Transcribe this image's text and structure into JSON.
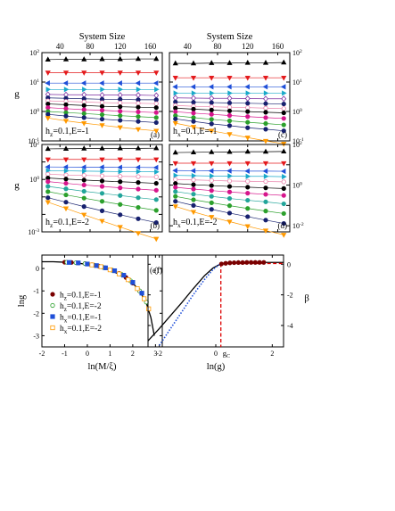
{
  "colors": {
    "black": "#000000",
    "red": "#e41a1c",
    "orange": "#ff9900",
    "blue": "#1f4fd8",
    "cyan": "#19a9c9",
    "magenta": "#d6168c",
    "green": "#2ca02c",
    "navy": "#16206e",
    "purple": "#7b2c9f",
    "pink": "#e87ea8",
    "teal": "#22a59a",
    "darkred": "#7a0000"
  },
  "chart_data": [
    {
      "id": "a",
      "type": "line",
      "panel_label": "(a)",
      "annotation": "h_z=0.1,E=-1",
      "xlabel": "System Size",
      "ylabel": "g",
      "log_y": true,
      "ylim": [
        0.1,
        100
      ],
      "x_ticks": [
        "40",
        "80",
        "120",
        "160"
      ],
      "y_ticks": [
        "10^{-1}",
        "10^{0}",
        "10^{1}",
        "10^{2}"
      ],
      "x": [
        24,
        48,
        72,
        96,
        120,
        144,
        168
      ],
      "series": [
        {
          "marker": "triangle-up",
          "color": "black",
          "values": [
            58,
            59,
            59,
            60,
            60,
            61,
            61
          ]
        },
        {
          "marker": "triangle-down",
          "color": "red",
          "values": [
            21,
            21,
            21,
            21,
            21,
            21,
            21
          ]
        },
        {
          "marker": "triangle-left",
          "color": "blue",
          "values": [
            9.2,
            9.2,
            9.2,
            9.2,
            9.2,
            9.2,
            9.2
          ]
        },
        {
          "marker": "triangle-right",
          "color": "cyan",
          "values": [
            5.6,
            5.6,
            5.6,
            5.6,
            5.6,
            5.6,
            5.6
          ]
        },
        {
          "marker": "diamond-open",
          "color": "purple",
          "values": [
            3.8,
            3.7,
            3.7,
            3.6,
            3.6,
            3.6,
            3.5
          ]
        },
        {
          "marker": "circle",
          "color": "navy",
          "values": [
            2.9,
            2.8,
            2.7,
            2.6,
            2.6,
            2.5,
            2.5
          ]
        },
        {
          "marker": "circle-open",
          "color": "pink",
          "values": [
            2.3,
            2.2,
            2.1,
            2.0,
            1.95,
            1.9,
            1.85
          ]
        },
        {
          "marker": "circle",
          "color": "black",
          "values": [
            1.8,
            1.7,
            1.6,
            1.5,
            1.45,
            1.4,
            1.35
          ]
        },
        {
          "marker": "circle",
          "color": "magenta",
          "values": [
            1.35,
            1.25,
            1.15,
            1.1,
            1.02,
            0.97,
            0.92
          ]
        },
        {
          "marker": "circle",
          "color": "green",
          "values": [
            1.0,
            0.92,
            0.85,
            0.78,
            0.72,
            0.67,
            0.62
          ]
        },
        {
          "marker": "circle",
          "color": "navy",
          "values": [
            0.8,
            0.7,
            0.62,
            0.55,
            0.5,
            0.46,
            0.42
          ]
        },
        {
          "marker": "triangle-down",
          "color": "orange",
          "values": [
            0.6,
            0.48,
            0.4,
            0.34,
            0.29,
            0.25,
            0.22
          ]
        }
      ]
    },
    {
      "id": "b",
      "type": "line",
      "panel_label": "(b)",
      "annotation": "h_z=0.1,E=-2",
      "ylabel": "g",
      "log_y": true,
      "ylim": [
        0.001,
        100
      ],
      "y_ticks": [
        "10^{-3}",
        "10^{0}",
        "10^{2}"
      ],
      "x": [
        24,
        48,
        72,
        96,
        120,
        144,
        168
      ],
      "series": [
        {
          "marker": "triangle-up",
          "color": "black",
          "values": [
            56,
            57,
            58,
            59,
            60,
            60,
            61
          ]
        },
        {
          "marker": "triangle-down",
          "color": "red",
          "values": [
            14,
            14,
            14,
            14,
            14,
            14,
            14
          ]
        },
        {
          "marker": "triangle-left",
          "color": "blue",
          "values": [
            5.2,
            5.1,
            5.0,
            5.0,
            4.9,
            4.9,
            4.8
          ]
        },
        {
          "marker": "triangle-right",
          "color": "cyan",
          "values": [
            3.2,
            3.1,
            3.0,
            2.9,
            2.8,
            2.8,
            2.7
          ]
        },
        {
          "marker": "circle-open",
          "color": "pink",
          "values": [
            2.0,
            1.8,
            1.7,
            1.6,
            1.5,
            1.45,
            1.4
          ]
        },
        {
          "marker": "circle",
          "color": "black",
          "values": [
            1.2,
            1.05,
            0.92,
            0.82,
            0.74,
            0.67,
            0.6
          ]
        },
        {
          "marker": "circle",
          "color": "magenta",
          "values": [
            0.75,
            0.6,
            0.48,
            0.4,
            0.33,
            0.28,
            0.24
          ]
        },
        {
          "marker": "circle",
          "color": "teal",
          "values": [
            0.4,
            0.29,
            0.21,
            0.16,
            0.12,
            0.09,
            0.07
          ]
        },
        {
          "marker": "circle",
          "color": "green",
          "values": [
            0.2,
            0.13,
            0.085,
            0.056,
            0.037,
            0.025,
            0.017
          ]
        },
        {
          "marker": "circle",
          "color": "navy",
          "values": [
            0.09,
            0.05,
            0.028,
            0.016,
            0.0095,
            0.0056,
            0.0034
          ]
        },
        {
          "marker": "triangle-down",
          "color": "orange",
          "values": [
            0.05,
            0.022,
            0.0095,
            0.0042,
            0.0019,
            0.00085,
            0.0004
          ]
        }
      ]
    },
    {
      "id": "c",
      "type": "line",
      "panel_label": "(c)",
      "annotation": "h_x=0.1,E=-1",
      "xlabel": "System Size",
      "log_y": true,
      "ylim": [
        0.1,
        100
      ],
      "x_ticks": [
        "40",
        "80",
        "120",
        "160"
      ],
      "y_ticks": [
        "10^{-1}",
        "10^{0}",
        "10^{1}",
        "10^{2}"
      ],
      "x": [
        24,
        48,
        72,
        96,
        120,
        144,
        168
      ],
      "series": [
        {
          "marker": "triangle-up",
          "color": "black",
          "values": [
            43,
            43,
            44,
            44,
            45,
            45,
            46
          ]
        },
        {
          "marker": "triangle-down",
          "color": "red",
          "values": [
            14,
            14,
            14,
            14,
            14,
            14,
            14
          ]
        },
        {
          "marker": "triangle-left",
          "color": "blue",
          "values": [
            6.9,
            6.9,
            6.9,
            6.9,
            6.9,
            6.9,
            6.9
          ]
        },
        {
          "marker": "triangle-right",
          "color": "cyan",
          "values": [
            4.2,
            4.2,
            4.2,
            4.2,
            4.2,
            4.2,
            4.2
          ]
        },
        {
          "marker": "diamond-open",
          "color": "purple",
          "values": [
            2.9,
            2.85,
            2.8,
            2.8,
            2.75,
            2.7,
            2.7
          ]
        },
        {
          "marker": "circle",
          "color": "navy",
          "values": [
            2.1,
            2.05,
            2.0,
            1.95,
            1.9,
            1.85,
            1.8
          ]
        },
        {
          "marker": "circle-open",
          "color": "pink",
          "values": [
            1.6,
            1.5,
            1.45,
            1.4,
            1.35,
            1.3,
            1.25
          ]
        },
        {
          "marker": "circle",
          "color": "black",
          "values": [
            1.3,
            1.2,
            1.12,
            1.05,
            0.99,
            0.94,
            0.9
          ]
        },
        {
          "marker": "circle",
          "color": "magenta",
          "values": [
            0.98,
            0.88,
            0.8,
            0.73,
            0.67,
            0.62,
            0.58
          ]
        },
        {
          "marker": "circle",
          "color": "green",
          "values": [
            0.72,
            0.62,
            0.54,
            0.48,
            0.43,
            0.39,
            0.35
          ]
        },
        {
          "marker": "circle",
          "color": "navy",
          "values": [
            0.56,
            0.46,
            0.38,
            0.33,
            0.28,
            0.25,
            0.22
          ]
        },
        {
          "marker": "triangle-down",
          "color": "orange",
          "values": [
            0.4,
            0.3,
            0.22,
            0.17,
            0.13,
            0.1,
            0.08
          ]
        }
      ]
    },
    {
      "id": "d",
      "type": "line",
      "panel_label": "(d)",
      "annotation": "h_x=0.1,E=-2",
      "log_y": true,
      "ylim": [
        0.005,
        100
      ],
      "y_ticks": [
        "10^{-2}",
        "10^{0}",
        "10^{2}"
      ],
      "x": [
        24,
        48,
        72,
        96,
        120,
        144,
        168
      ],
      "series": [
        {
          "marker": "triangle-up",
          "color": "black",
          "values": [
            40,
            41,
            42,
            43,
            44,
            44,
            45
          ]
        },
        {
          "marker": "triangle-down",
          "color": "red",
          "values": [
            12,
            12,
            12,
            12,
            12,
            12,
            12
          ]
        },
        {
          "marker": "triangle-left",
          "color": "blue",
          "values": [
            5.2,
            5.1,
            5.0,
            5.0,
            4.9,
            4.9,
            4.8
          ]
        },
        {
          "marker": "triangle-right",
          "color": "cyan",
          "values": [
            3.0,
            2.9,
            2.8,
            2.8,
            2.7,
            2.7,
            2.6
          ]
        },
        {
          "marker": "circle-open",
          "color": "pink",
          "values": [
            1.9,
            1.8,
            1.7,
            1.6,
            1.55,
            1.5,
            1.45
          ]
        },
        {
          "marker": "circle",
          "color": "black",
          "values": [
            1.2,
            1.05,
            0.95,
            0.86,
            0.79,
            0.73,
            0.68
          ]
        },
        {
          "marker": "circle",
          "color": "magenta",
          "values": [
            0.78,
            0.64,
            0.54,
            0.46,
            0.4,
            0.35,
            0.31
          ]
        },
        {
          "marker": "circle",
          "color": "teal",
          "values": [
            0.48,
            0.36,
            0.28,
            0.22,
            0.18,
            0.15,
            0.12
          ]
        },
        {
          "marker": "circle",
          "color": "green",
          "values": [
            0.28,
            0.19,
            0.135,
            0.097,
            0.071,
            0.053,
            0.04
          ]
        },
        {
          "marker": "circle",
          "color": "navy",
          "values": [
            0.16,
            0.1,
            0.064,
            0.042,
            0.028,
            0.019,
            0.013
          ]
        },
        {
          "marker": "triangle-down",
          "color": "orange",
          "values": [
            0.09,
            0.048,
            0.027,
            0.016,
            0.0095,
            0.0058,
            0.0036
          ]
        }
      ]
    },
    {
      "id": "e",
      "type": "scatter",
      "panel_label": "(e)",
      "xlabel": "ln(M/ξ)",
      "ylabel": "lng",
      "xlim": [
        -2,
        3.3
      ],
      "ylim": [
        -3.5,
        0.6
      ],
      "x_ticks": [
        -2,
        -1,
        0,
        1,
        2,
        3
      ],
      "y_ticks": [
        -3,
        -2,
        -1,
        0
      ],
      "legend_position": "bottom-left",
      "scaling_curve": {
        "x": [
          -2.0,
          -1.5,
          -1.0,
          -0.5,
          0.0,
          0.5,
          1.0,
          1.5,
          2.0,
          2.3,
          2.6,
          2.8,
          2.95
        ],
        "y": [
          0.3,
          0.3,
          0.28,
          0.25,
          0.18,
          0.08,
          -0.08,
          -0.3,
          -0.65,
          -1.0,
          -1.55,
          -2.2,
          -3.0
        ]
      },
      "series": [
        {
          "name": "h_z=0.1,E=-1",
          "marker": "circle",
          "color": "darkred",
          "x": [
            -1.0,
            -0.7,
            -0.4,
            -0.1,
            0.2,
            0.5,
            0.8,
            1.1,
            1.4,
            1.7,
            2.0,
            2.3
          ],
          "y": [
            0.28,
            0.27,
            0.25,
            0.22,
            0.17,
            0.11,
            0.03,
            -0.08,
            -0.22,
            -0.4,
            -0.65,
            -1.0
          ]
        },
        {
          "name": "h_z=0.1,E=-2",
          "marker": "circle-open",
          "color": "green",
          "x": [
            -0.9,
            -0.5,
            -0.1,
            0.3,
            0.7,
            1.1,
            1.5,
            1.9,
            2.3,
            2.6
          ],
          "y": [
            0.28,
            0.26,
            0.22,
            0.15,
            0.05,
            -0.08,
            -0.26,
            -0.55,
            -1.0,
            -1.5
          ]
        },
        {
          "name": "h_x=0.1,E=-1",
          "marker": "square",
          "color": "blue",
          "x": [
            -0.8,
            -0.4,
            0.0,
            0.4,
            0.8,
            1.2,
            1.6,
            2.0,
            2.4
          ],
          "y": [
            0.27,
            0.25,
            0.2,
            0.13,
            0.03,
            -0.1,
            -0.3,
            -0.62,
            -1.1
          ]
        },
        {
          "name": "h_x=0.1,E=-2",
          "marker": "square-open",
          "color": "orange",
          "x": [
            0.2,
            0.6,
            1.0,
            1.4,
            1.8,
            2.2,
            2.5,
            2.7
          ],
          "y": [
            0.16,
            0.08,
            -0.06,
            -0.24,
            -0.5,
            -0.9,
            -1.35,
            -1.8
          ]
        }
      ]
    },
    {
      "id": "f",
      "type": "line",
      "panel_label": "(f)",
      "xlabel": "ln(g)",
      "ylabel": "β",
      "xlim": [
        -2.4,
        2.4
      ],
      "ylim": [
        -5.4,
        0.6
      ],
      "x_ticks": [
        -2,
        0,
        2
      ],
      "y_ticks": [
        0,
        -2,
        -4
      ],
      "critical_marker": {
        "label": "g",
        "subscript": "C",
        "x": 0.18
      },
      "curves": [
        {
          "style": "solid",
          "color": "black",
          "x": [
            -2.4,
            -2.0,
            -1.6,
            -1.2,
            -0.8,
            -0.4,
            -0.1,
            0.1,
            0.3,
            0.6,
            1.0,
            1.5,
            2.0,
            2.4
          ],
          "y": [
            -5.0,
            -4.2,
            -3.35,
            -2.5,
            -1.6,
            -0.75,
            -0.25,
            -0.05,
            0.05,
            0.1,
            0.12,
            0.12,
            0.12,
            0.12
          ]
        },
        {
          "style": "dotted",
          "color": "blue",
          "x": [
            -2.0,
            -1.6,
            -1.2,
            -0.8,
            -0.4,
            -0.1,
            0.1,
            0.3,
            0.6,
            1.0,
            1.5
          ],
          "y": [
            -5.3,
            -4.2,
            -3.1,
            -2.0,
            -1.0,
            -0.35,
            -0.05,
            0.05,
            0.1,
            0.12,
            0.12
          ]
        }
      ],
      "points": {
        "marker": "circle",
        "color": "darkred",
        "x": [
          0.2,
          0.35,
          0.5,
          0.65,
          0.8,
          0.95,
          1.1,
          1.25,
          1.4,
          1.55,
          1.7
        ],
        "y": [
          0.02,
          0.06,
          0.09,
          0.1,
          0.11,
          0.11,
          0.12,
          0.12,
          0.12,
          0.12,
          0.12
        ]
      }
    }
  ]
}
